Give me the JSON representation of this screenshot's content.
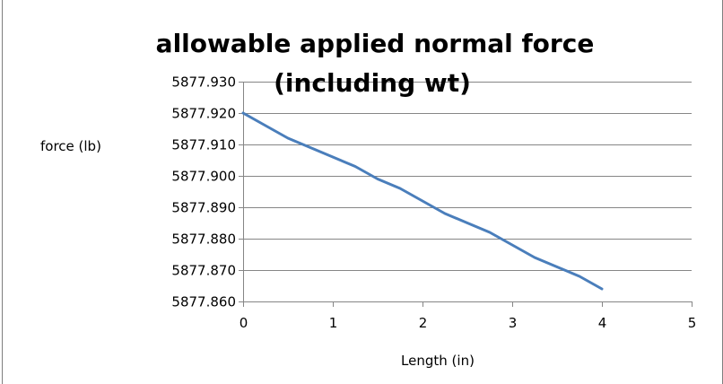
{
  "chart_data": {
    "type": "line",
    "title_line1": "allowable applied normal force",
    "title_line2": "(including wt)",
    "xlabel": "Length (in)",
    "ylabel": "force (lb)",
    "xlim": [
      0,
      5
    ],
    "ylim": [
      5877.86,
      5877.93
    ],
    "x_ticks": [
      "0",
      "1",
      "2",
      "3",
      "4",
      "5"
    ],
    "y_ticks": [
      "5877.930",
      "5877.920",
      "5877.910",
      "5877.900",
      "5877.890",
      "5877.880",
      "5877.870",
      "5877.860"
    ],
    "grid": "horizontal",
    "series": [
      {
        "color": "#4a7ebb",
        "x": [
          0,
          0.25,
          0.5,
          0.75,
          1,
          1.25,
          1.5,
          1.75,
          2,
          2.25,
          2.5,
          2.75,
          3,
          3.25,
          3.5,
          3.75,
          4
        ],
        "y": [
          5877.92,
          5877.916,
          5877.912,
          5877.909,
          5877.906,
          5877.903,
          5877.899,
          5877.896,
          5877.892,
          5877.888,
          5877.885,
          5877.882,
          5877.878,
          5877.874,
          5877.871,
          5877.868,
          5877.864
        ]
      }
    ]
  }
}
